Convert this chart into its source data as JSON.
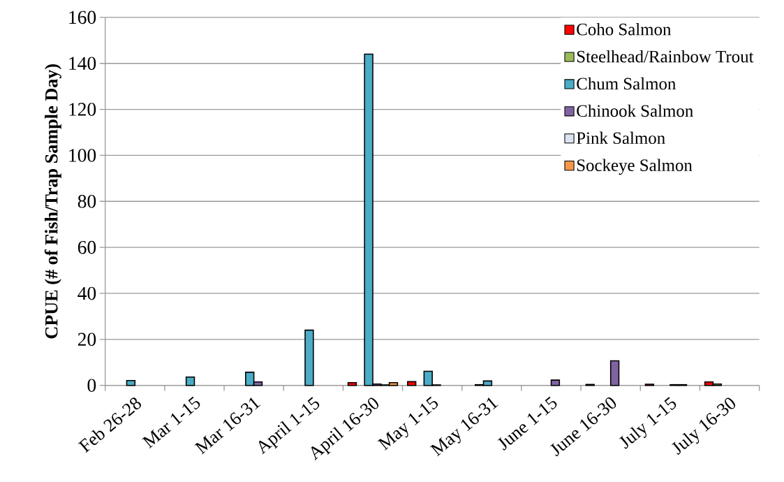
{
  "chart_data": {
    "type": "bar",
    "ylabel": "CPUE (# of Fish/Trap Sample Day)",
    "categories": [
      "Feb 26-28",
      "Mar 1-15",
      "Mar 16-31",
      "April 1-15",
      "April 16-30",
      "May 1-15",
      "May 16-31",
      "June 1-15",
      "June 16-30",
      "July 1-15",
      "July 16-30"
    ],
    "series": [
      {
        "name": "Coho Salmon",
        "color": "#ff0000",
        "values": [
          null,
          null,
          null,
          null,
          1.2,
          1.6,
          null,
          null,
          0.4,
          0.5,
          1.5
        ]
      },
      {
        "name": "Steelhead/Rainbow Trout",
        "color": "#9bbb59",
        "values": [
          null,
          null,
          null,
          null,
          null,
          null,
          0.3,
          null,
          null,
          null,
          0.6
        ]
      },
      {
        "name": "Chum Salmon",
        "color": "#4bacc6",
        "values": [
          2.1,
          3.6,
          5.7,
          24,
          144,
          6.1,
          1.9,
          null,
          null,
          null,
          null
        ]
      },
      {
        "name": "Chinook Salmon",
        "color": "#8064a2",
        "values": [
          null,
          null,
          1.5,
          null,
          0.6,
          0.2,
          null,
          2.3,
          10.7,
          0.3,
          null
        ]
      },
      {
        "name": "Pink Salmon",
        "color": "#dbe5f1",
        "values": [
          null,
          null,
          null,
          null,
          0.2,
          null,
          null,
          null,
          null,
          0.3,
          null
        ]
      },
      {
        "name": "Sockeye Salmon",
        "color": "#f79646",
        "values": [
          null,
          null,
          null,
          null,
          1.2,
          null,
          null,
          null,
          null,
          null,
          null
        ]
      }
    ],
    "ylim": [
      0,
      160
    ],
    "yticks": [
      0,
      20,
      40,
      60,
      80,
      100,
      120,
      140,
      160
    ],
    "grid": "y",
    "legend": "top right"
  }
}
